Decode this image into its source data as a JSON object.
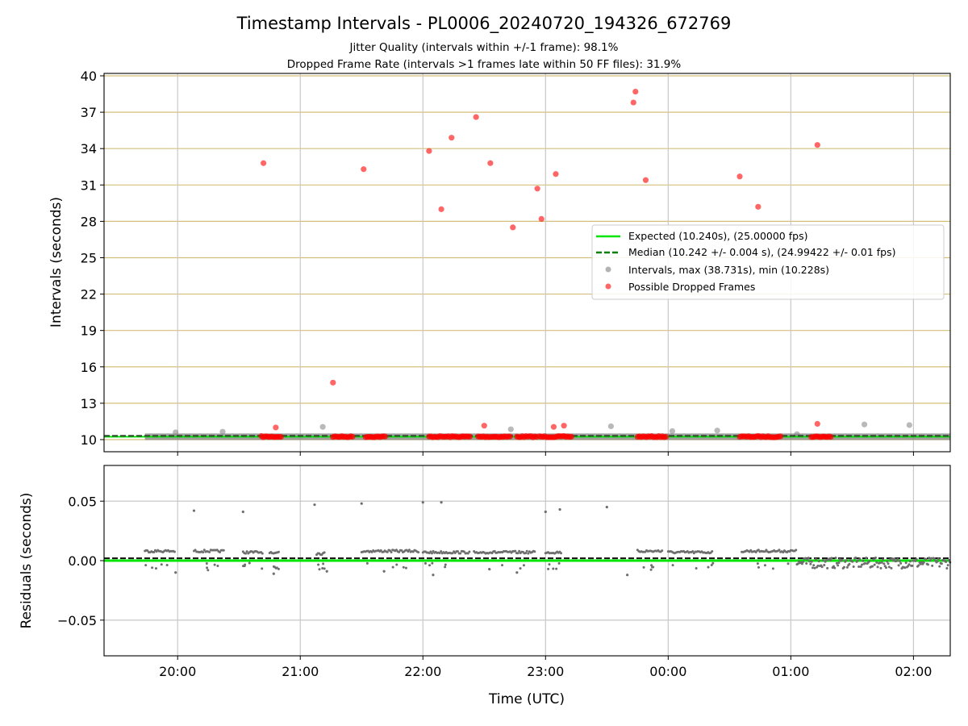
{
  "figure": {
    "title": "Timestamp Intervals - PL0006_20240720_194326_672769",
    "subtitle_1": "Jitter Quality (intervals within +/-1 frame): 98.1%",
    "subtitle_2": "Dropped Frame Rate (intervals >1 frames late within 50 FF files): 31.9%"
  },
  "chart_data": [
    {
      "type": "scatter",
      "ylabel": "Intervals (seconds)",
      "ylim": [
        9.0,
        40.2
      ],
      "yticks": [
        10,
        13,
        16,
        19,
        22,
        25,
        28,
        31,
        34,
        37,
        40
      ],
      "grid": true,
      "legend_position": "center-right",
      "expected_line": {
        "name": "Expected (10.240s), (25.00000 fps)",
        "value": 10.24,
        "color": "#00e600"
      },
      "median_line": {
        "name": "Median (10.242 +/- 0.004 s), (24.99422 +/- 0.01 fps)",
        "value": 10.242,
        "color": "#008000"
      },
      "intervals": {
        "name": "Intervals, max (38.731s), min (10.228s)",
        "color": "#808080",
        "band": {
          "x_start": "19:44",
          "x_end": "02:18",
          "y": 10.24
        },
        "outliers": [
          {
            "x": "19:59",
            "y": 10.6
          },
          {
            "x": "20:22",
            "y": 10.65
          },
          {
            "x": "21:11",
            "y": 11.05
          },
          {
            "x": "22:43",
            "y": 10.85
          },
          {
            "x": "23:32",
            "y": 11.1
          },
          {
            "x": "00:02",
            "y": 10.7
          },
          {
            "x": "00:24",
            "y": 10.75
          },
          {
            "x": "01:03",
            "y": 10.45
          },
          {
            "x": "01:36",
            "y": 11.25
          },
          {
            "x": "01:58",
            "y": 11.2
          }
        ]
      },
      "dropped": {
        "name": "Possible Dropped Frames",
        "color": "#ff0000",
        "clusters": [
          [
            "20:41",
            "20:51"
          ],
          [
            "21:16",
            "21:26"
          ],
          [
            "21:32",
            "21:42"
          ],
          [
            "22:03",
            "22:23"
          ],
          [
            "22:27",
            "22:43"
          ],
          [
            "22:46",
            "22:56"
          ],
          [
            "22:57",
            "23:13"
          ],
          [
            "23:45",
            "23:59"
          ],
          [
            "00:35",
            "00:55"
          ],
          [
            "01:10",
            "01:20"
          ]
        ],
        "points": [
          {
            "x": "20:42",
            "y": 32.8
          },
          {
            "x": "20:48",
            "y": 11.0
          },
          {
            "x": "21:16",
            "y": 14.7
          },
          {
            "x": "21:31",
            "y": 32.3
          },
          {
            "x": "22:03",
            "y": 33.8
          },
          {
            "x": "22:09",
            "y": 29.0
          },
          {
            "x": "22:14",
            "y": 34.9
          },
          {
            "x": "22:26",
            "y": 36.6
          },
          {
            "x": "22:30",
            "y": 11.15
          },
          {
            "x": "22:33",
            "y": 32.8
          },
          {
            "x": "22:44",
            "y": 27.5
          },
          {
            "x": "22:56",
            "y": 30.7
          },
          {
            "x": "22:58",
            "y": 28.2
          },
          {
            "x": "23:04",
            "y": 11.05
          },
          {
            "x": "23:05",
            "y": 31.9
          },
          {
            "x": "23:09",
            "y": 11.15
          },
          {
            "x": "23:43",
            "y": 37.8
          },
          {
            "x": "23:44",
            "y": 38.7
          },
          {
            "x": "23:49",
            "y": 31.4
          },
          {
            "x": "00:35",
            "y": 31.7
          },
          {
            "x": "00:44",
            "y": 29.2
          },
          {
            "x": "01:13",
            "y": 11.3
          },
          {
            "x": "01:13",
            "y": 34.3
          }
        ]
      }
    },
    {
      "type": "scatter",
      "xlabel": "Time (UTC)",
      "ylabel": "Residuals (seconds)",
      "ylim": [
        -0.08,
        0.08
      ],
      "yticks": [
        0.05,
        0.0,
        -0.05
      ],
      "ytick_labels": [
        "0.05",
        "0.00",
        "−0.05"
      ],
      "xlim": [
        "19:24",
        "02:18"
      ],
      "xticks": [
        "20:00",
        "21:00",
        "22:00",
        "23:00",
        "00:00",
        "01:00",
        "02:00"
      ],
      "grid": true,
      "expected_line": {
        "value": 0.0,
        "color": "#00e600"
      },
      "median_line": {
        "value": 0.002,
        "color": "#008000"
      },
      "residuals": {
        "color": "#808080",
        "segments": [
          {
            "x_start": "19:44",
            "x_end": "19:59",
            "y": 0.008
          },
          {
            "x_start": "20:08",
            "x_end": "20:23",
            "y": 0.008
          },
          {
            "x_start": "20:32",
            "x_end": "20:42",
            "y": 0.007
          },
          {
            "x_start": "20:45",
            "x_end": "20:50",
            "y": 0.007
          },
          {
            "x_start": "21:08",
            "x_end": "21:12",
            "y": 0.006
          },
          {
            "x_start": "21:30",
            "x_end": "21:58",
            "y": 0.008
          },
          {
            "x_start": "22:00",
            "x_end": "22:23",
            "y": 0.007
          },
          {
            "x_start": "22:25",
            "x_end": "22:55",
            "y": 0.007
          },
          {
            "x_start": "23:00",
            "x_end": "23:08",
            "y": 0.007
          },
          {
            "x_start": "23:45",
            "x_end": "23:57",
            "y": 0.008
          },
          {
            "x_start": "00:00",
            "x_end": "00:22",
            "y": 0.007
          },
          {
            "x_start": "00:36",
            "x_end": "01:03",
            "y": 0.008
          }
        ],
        "noisy_band": {
          "x_start": "01:03",
          "x_end": "02:18",
          "y": -0.002
        },
        "outliers": [
          {
            "x": "20:08",
            "y": 0.042
          },
          {
            "x": "20:32",
            "y": 0.041
          },
          {
            "x": "21:07",
            "y": 0.047
          },
          {
            "x": "21:30",
            "y": 0.048
          },
          {
            "x": "22:00",
            "y": 0.049
          },
          {
            "x": "22:09",
            "y": 0.049
          },
          {
            "x": "23:00",
            "y": 0.041
          },
          {
            "x": "23:07",
            "y": 0.043
          },
          {
            "x": "23:30",
            "y": 0.045
          },
          {
            "x": "19:59",
            "y": -0.01
          },
          {
            "x": "20:47",
            "y": -0.011
          },
          {
            "x": "21:13",
            "y": -0.009
          },
          {
            "x": "21:41",
            "y": -0.009
          },
          {
            "x": "22:05",
            "y": -0.012
          },
          {
            "x": "22:46",
            "y": -0.01
          },
          {
            "x": "23:40",
            "y": -0.012
          }
        ]
      }
    }
  ]
}
